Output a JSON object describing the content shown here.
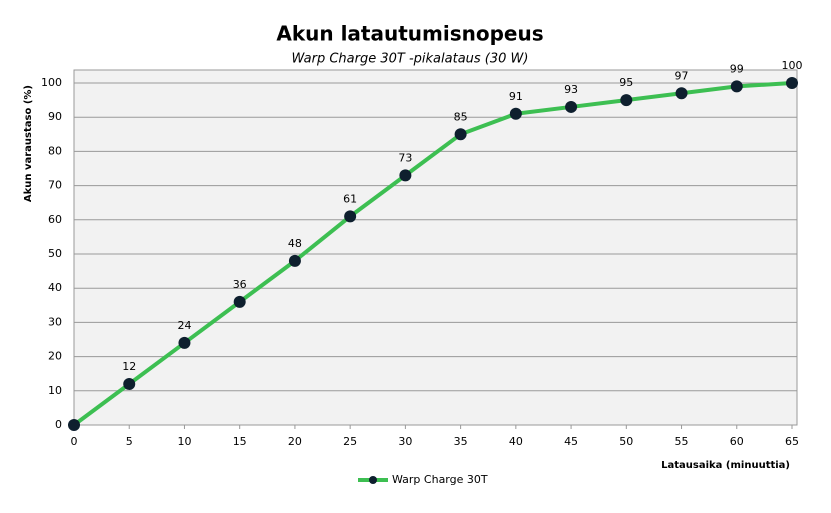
{
  "chart_data": {
    "type": "line",
    "title": "Akun latautumisnopeus",
    "subtitle": "Warp Charge 30T -pikalataus (30 W)",
    "x_label": "Latausaika  (minuuttia)",
    "y_label": "Akun varaustaso (%)",
    "x": [
      0,
      5,
      10,
      15,
      20,
      25,
      30,
      35,
      40,
      45,
      50,
      55,
      60,
      65
    ],
    "series": [
      {
        "name": "Warp Charge 30T",
        "color": "#3dbf52",
        "marker_color": "#0e1f2e",
        "values": [
          0,
          12,
          24,
          36,
          48,
          61,
          73,
          85,
          91,
          93,
          95,
          97,
          99,
          100
        ],
        "value_labels": [
          null,
          "12",
          "24",
          "36",
          "48",
          "61",
          "73",
          "85",
          "91",
          "93",
          "95",
          "97",
          "99",
          "100"
        ]
      }
    ],
    "xlim": [
      0,
      65
    ],
    "xticks": [
      0,
      5,
      10,
      15,
      20,
      25,
      30,
      35,
      40,
      45,
      50,
      55,
      60,
      65
    ],
    "ylim": [
      0,
      100
    ],
    "yticks": [
      0,
      10,
      20,
      30,
      40,
      50,
      60,
      70,
      80,
      90,
      100
    ],
    "grid": true,
    "legend": "bottom"
  }
}
